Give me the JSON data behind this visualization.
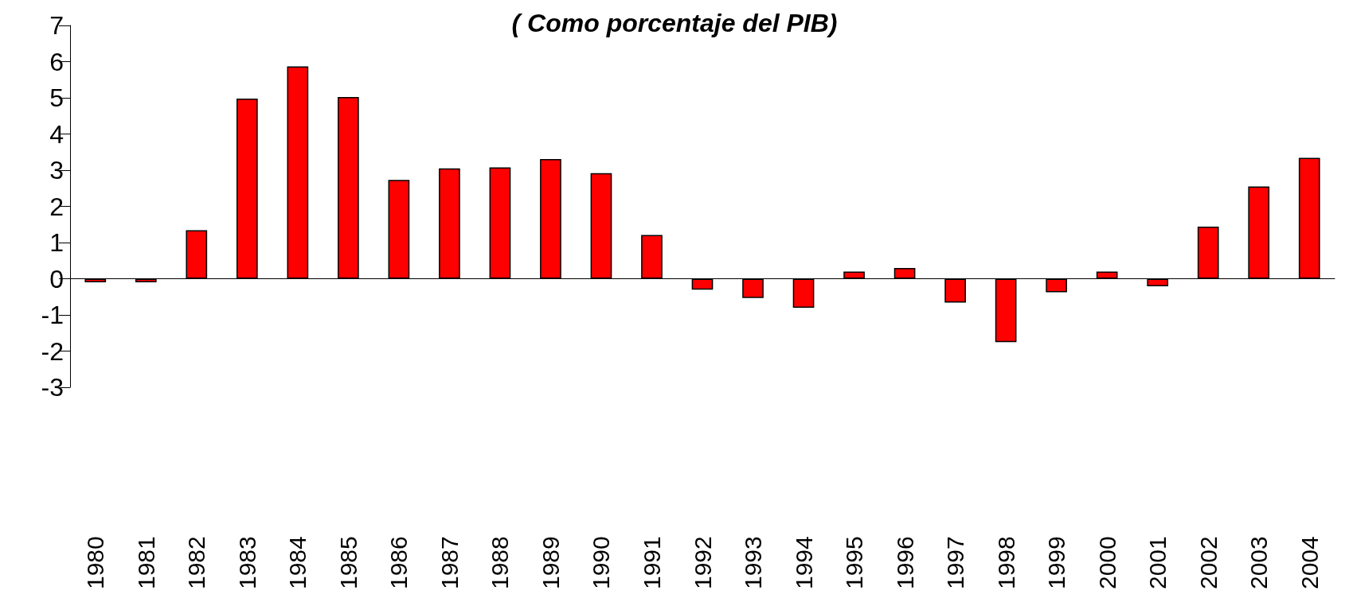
{
  "chart_data": {
    "type": "bar",
    "title": "( Como porcentaje del PIB)",
    "categories": [
      "1980",
      "1981",
      "1982",
      "1983",
      "1984",
      "1985",
      "1986",
      "1987",
      "1988",
      "1989",
      "1990",
      "1991",
      "1992",
      "1993",
      "1994",
      "1995",
      "1996",
      "1997",
      "1998",
      "1999",
      "2000",
      "2001",
      "2002",
      "2003",
      "2004"
    ],
    "values": [
      -0.1,
      -0.1,
      1.34,
      4.98,
      5.87,
      5.02,
      2.73,
      3.05,
      3.08,
      3.31,
      2.92,
      1.21,
      -0.3,
      -0.53,
      -0.8,
      0.2,
      0.3,
      -0.66,
      -1.75,
      -0.37,
      0.2,
      -0.21,
      1.44,
      2.55,
      3.34
    ],
    "color": "#ff0000",
    "ylim": [
      -3,
      7
    ],
    "yticks": [
      -3,
      -2,
      -1,
      0,
      1,
      2,
      3,
      4,
      5,
      6,
      7
    ]
  }
}
